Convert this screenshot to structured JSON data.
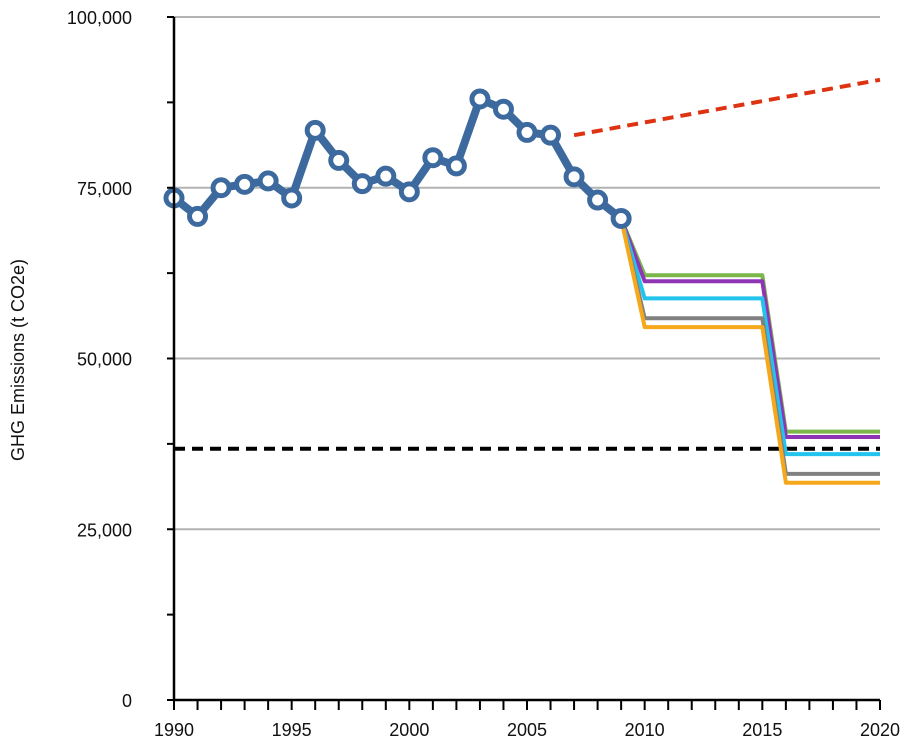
{
  "chart_data": {
    "type": "line",
    "title": "",
    "xlabel": "",
    "ylabel": "GHG Emissions (t CO2e)",
    "xlim": [
      1990,
      2020
    ],
    "ylim": [
      0,
      100000
    ],
    "x_ticks": [
      "1990",
      "1995",
      "2000",
      "2005",
      "2010",
      "2015",
      "2020"
    ],
    "y_ticks": [
      "0",
      "25,000",
      "50,000",
      "75,000",
      "100,000"
    ],
    "y_tick_values": [
      0,
      25000,
      50000,
      75000,
      100000
    ],
    "grid": "horizontal",
    "legend": "none",
    "series": [
      {
        "color": "#3d6a9e",
        "style": "solid-markers",
        "x": [
          1990,
          1991,
          1992,
          1993,
          1994,
          1995,
          1996,
          1997,
          1998,
          1999,
          2000,
          2001,
          2002,
          2003,
          2004,
          2005,
          2006,
          2007,
          2008,
          2009
        ],
        "y": [
          73500,
          70800,
          75000,
          75500,
          76000,
          73500,
          83400,
          79000,
          75600,
          76700,
          74400,
          79400,
          78200,
          88000,
          86500,
          83100,
          82700,
          76600,
          73200,
          70500
        ]
      },
      {
        "color": "#dd3311",
        "style": "dashed",
        "x": [
          2007,
          2020
        ],
        "y": [
          82700,
          90800
        ]
      },
      {
        "color": "#000000",
        "style": "dashed",
        "x": [
          1990,
          2020
        ],
        "y": [
          36800,
          36800
        ]
      },
      {
        "color": "#7ab648",
        "style": "solid",
        "x": [
          2009,
          2010,
          2015,
          2016,
          2020
        ],
        "y": [
          70500,
          62200,
          62200,
          39300,
          39300
        ]
      },
      {
        "color": "#8e35b5",
        "style": "solid",
        "x": [
          2009,
          2010,
          2015,
          2016,
          2020
        ],
        "y": [
          70500,
          61300,
          61300,
          38500,
          38500
        ]
      },
      {
        "color": "#22c4ee",
        "style": "solid",
        "x": [
          2009,
          2010,
          2015,
          2016,
          2020
        ],
        "y": [
          70500,
          58800,
          58800,
          36000,
          36000
        ]
      },
      {
        "color": "#808080",
        "style": "solid",
        "x": [
          2009,
          2010,
          2015,
          2016,
          2020
        ],
        "y": [
          70500,
          55900,
          55900,
          33100,
          33100
        ]
      },
      {
        "color": "#f5a81c",
        "style": "solid",
        "x": [
          2009,
          2010,
          2015,
          2016,
          2020
        ],
        "y": [
          70500,
          54600,
          54600,
          31800,
          31800
        ]
      }
    ]
  }
}
